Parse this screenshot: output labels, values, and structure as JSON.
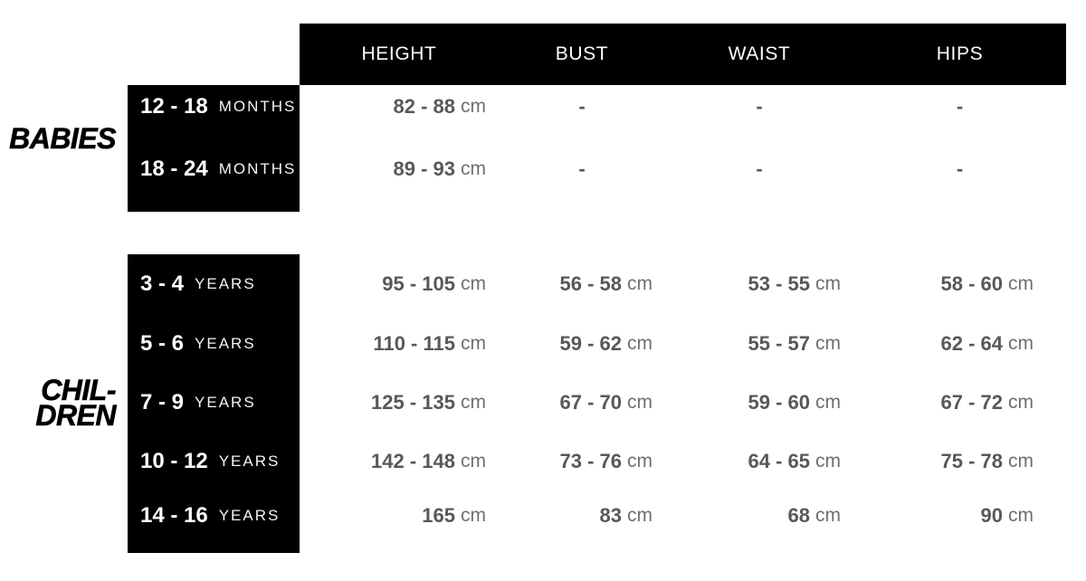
{
  "columns": [
    "HEIGHT",
    "BUST",
    "WAIST",
    "HIPS"
  ],
  "colors": {
    "bar_background": "#000000",
    "header_text": "#ffffff",
    "value_number": "#57585a",
    "value_unit": "#6e6f71",
    "section_label": "#000000"
  },
  "sections": {
    "babies": {
      "label": "BABIES",
      "rows": [
        {
          "age": "12 - 18",
          "age_unit": "MONTHS",
          "height": {
            "num": "82 - 88",
            "unit": "cm"
          },
          "bust": {
            "dash": "-"
          },
          "waist": {
            "dash": "-"
          },
          "hips": {
            "dash": "-"
          }
        },
        {
          "age": "18 - 24",
          "age_unit": "MONTHS",
          "height": {
            "num": "89 - 93",
            "unit": "cm"
          },
          "bust": {
            "dash": "-"
          },
          "waist": {
            "dash": "-"
          },
          "hips": {
            "dash": "-"
          }
        }
      ]
    },
    "children": {
      "label_lines": [
        "CHIL-",
        "DREN"
      ],
      "rows": [
        {
          "age": "3 - 4",
          "age_unit": "YEARS",
          "height": {
            "num": "95 - 105",
            "unit": "cm"
          },
          "bust": {
            "num": "56 - 58",
            "unit": "cm"
          },
          "waist": {
            "num": "53 - 55",
            "unit": "cm"
          },
          "hips": {
            "num": "58 - 60",
            "unit": "cm"
          }
        },
        {
          "age": "5 - 6",
          "age_unit": "YEARS",
          "height": {
            "num": "110 - 115",
            "unit": "cm"
          },
          "bust": {
            "num": "59 - 62",
            "unit": "cm"
          },
          "waist": {
            "num": "55 - 57",
            "unit": "cm"
          },
          "hips": {
            "num": "62 - 64",
            "unit": "cm"
          }
        },
        {
          "age": "7 - 9",
          "age_unit": "YEARS",
          "height": {
            "num": "125 - 135",
            "unit": "cm"
          },
          "bust": {
            "num": "67 - 70",
            "unit": "cm"
          },
          "waist": {
            "num": "59 - 60",
            "unit": "cm"
          },
          "hips": {
            "num": "67 - 72",
            "unit": "cm"
          }
        },
        {
          "age": "10 - 12",
          "age_unit": "YEARS",
          "height": {
            "num": "142 - 148",
            "unit": "cm"
          },
          "bust": {
            "num": "73 - 76",
            "unit": "cm"
          },
          "waist": {
            "num": "64 - 65",
            "unit": "cm"
          },
          "hips": {
            "num": "75 - 78",
            "unit": "cm"
          }
        },
        {
          "age": "14 - 16",
          "age_unit": "YEARS",
          "height": {
            "num": "165",
            "unit": "cm"
          },
          "bust": {
            "num": "83",
            "unit": "cm"
          },
          "waist": {
            "num": "68",
            "unit": "cm"
          },
          "hips": {
            "num": "90",
            "unit": "cm"
          }
        }
      ]
    }
  },
  "chart_data": {
    "type": "table",
    "columns": [
      "",
      "HEIGHT",
      "BUST",
      "WAIST",
      "HIPS"
    ],
    "row_groups": [
      {
        "group": "BABIES",
        "rows": [
          [
            "12 - 18 MONTHS",
            "82 - 88 cm",
            "-",
            "-",
            "-"
          ],
          [
            "18 - 24 MONTHS",
            "89 - 93 cm",
            "-",
            "-",
            "-"
          ]
        ]
      },
      {
        "group": "CHIL-DREN",
        "rows": [
          [
            "3 - 4 YEARS",
            "95 - 105 cm",
            "56 - 58 cm",
            "53 - 55 cm",
            "58 - 60 cm"
          ],
          [
            "5 - 6 YEARS",
            "110 - 115 cm",
            "59 - 62 cm",
            "55 - 57 cm",
            "62 - 64 cm"
          ],
          [
            "7 - 9 YEARS",
            "125 - 135 cm",
            "67 - 70 cm",
            "59 - 60 cm",
            "67 - 72 cm"
          ],
          [
            "10 - 12 YEARS",
            "142 - 148 cm",
            "73 - 76 cm",
            "64 - 65 cm",
            "75 - 78 cm"
          ],
          [
            "14 - 16 YEARS",
            "165 cm",
            "83 cm",
            "68 cm",
            "90 cm"
          ]
        ]
      }
    ]
  }
}
